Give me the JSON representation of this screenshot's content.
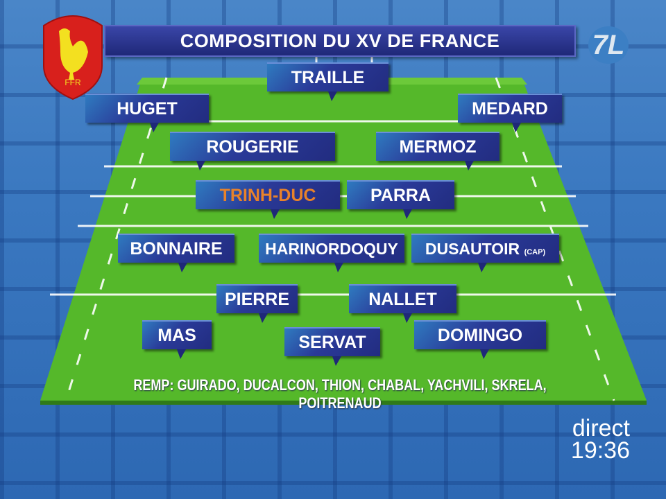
{
  "header": {
    "title": "COMPOSITION DU XV DE FRANCE",
    "federation_logo_text": "FFR",
    "channel_logo": "7L"
  },
  "players": [
    {
      "name": "TRAILLE"
    },
    {
      "name": "HUGET"
    },
    {
      "name": "MEDARD"
    },
    {
      "name": "ROUGERIE"
    },
    {
      "name": "MERMOZ"
    },
    {
      "name": "TRINH-DUC",
      "highlight_color": "#e8822a"
    },
    {
      "name": "PARRA"
    },
    {
      "name": "BONNAIRE"
    },
    {
      "name": "HARINORDOQUY"
    },
    {
      "name": "DUSAUTOIR",
      "suffix": "(CAP)"
    },
    {
      "name": "PIERRE"
    },
    {
      "name": "NALLET"
    },
    {
      "name": "MAS"
    },
    {
      "name": "SERVAT"
    },
    {
      "name": "DOMINGO"
    }
  ],
  "replacements": "REMP: GUIRADO, DUCALCON, THION, CHABAL, YACHVILI, SKRELA, POITRENAUD",
  "status": {
    "live": "direct",
    "time": "19:36"
  },
  "colors": {
    "field": "#55b82a",
    "box": "#222c80",
    "highlight": "#e8822a"
  }
}
